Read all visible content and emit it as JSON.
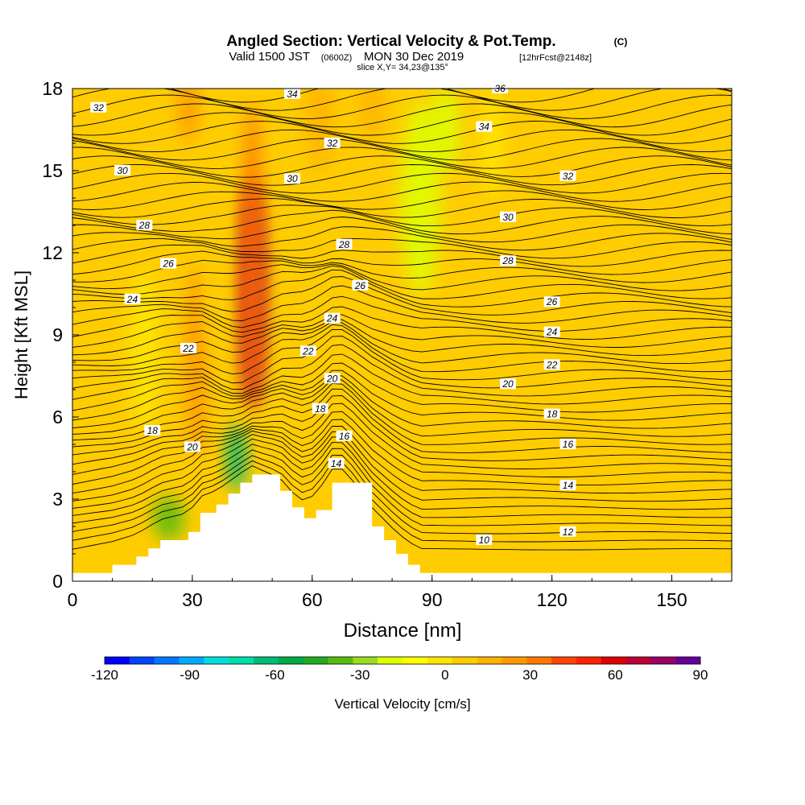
{
  "header": {
    "title": "Angled Section: Vertical Velocity & Pot.Temp.",
    "copyright": "(C)",
    "valid_prefix": "Valid 1500 JST",
    "valid_utc": "(0600Z)",
    "valid_date": "MON 30 Dec 2019",
    "forecast_info": "[12hrFcst@2148z]",
    "slice": "slice X,Y= 34,23@135°"
  },
  "chart_data": {
    "type": "heatmap",
    "title": "Angled Section: Vertical Velocity & Pot.Temp.",
    "xlabel": "Distance [nm]",
    "ylabel": "Height [Kft MSL]",
    "xlim": [
      0,
      165
    ],
    "ylim": [
      0,
      18
    ],
    "x_ticks": [
      0,
      30,
      60,
      90,
      120,
      150
    ],
    "y_ticks": [
      0,
      3,
      6,
      9,
      12,
      15,
      18
    ],
    "colorbar": {
      "label": "Vertical Velocity [cm/s]",
      "min": -120,
      "max": 90,
      "step": 10,
      "ticks": [
        -120,
        -90,
        -60,
        -30,
        0,
        30,
        60,
        90
      ],
      "colors": [
        "#0000ff",
        "#0044ff",
        "#0077ff",
        "#00aaff",
        "#00dddd",
        "#00ddaa",
        "#00bb77",
        "#00aa44",
        "#22aa22",
        "#55bb11",
        "#99dd22",
        "#ddff00",
        "#ffff00",
        "#ffe600",
        "#ffcc00",
        "#ffb300",
        "#ff9900",
        "#ff7700",
        "#ff4400",
        "#ff2200",
        "#dd0000",
        "#bb0033",
        "#990066",
        "#660099"
      ]
    },
    "terrain_kft": {
      "x": [
        0,
        10,
        16,
        19,
        22,
        29,
        32,
        36,
        39,
        42,
        45,
        52,
        55,
        58,
        61,
        65,
        68,
        75,
        78,
        81,
        84,
        87,
        90,
        165
      ],
      "y": [
        0.3,
        0.6,
        0.9,
        1.2,
        1.5,
        1.8,
        2.5,
        2.8,
        3.2,
        3.6,
        3.9,
        3.3,
        2.7,
        2.3,
        2.6,
        3.6,
        3.6,
        2.0,
        1.5,
        1.0,
        0.6,
        0.3,
        0.3,
        0.3
      ]
    },
    "velocity_features": [
      {
        "x": 45,
        "y": 10.5,
        "rx": 3.5,
        "ry": 4.2,
        "value": 90
      },
      {
        "x": 45,
        "y": 12.0,
        "rx": 2.5,
        "ry": 5.5,
        "value": 55
      },
      {
        "x": 31,
        "y": 8.0,
        "rx": 3.0,
        "ry": 3.5,
        "value": 45
      },
      {
        "x": 62,
        "y": 17.0,
        "rx": 3.5,
        "ry": 2.0,
        "value": 35
      },
      {
        "x": 29,
        "y": 17.5,
        "rx": 2.5,
        "ry": 1.5,
        "value": 40
      },
      {
        "x": 41,
        "y": 4.5,
        "rx": 2.5,
        "ry": 1.2,
        "value": -60
      },
      {
        "x": 24,
        "y": 2.3,
        "rx": 4.0,
        "ry": 0.8,
        "value": -25
      },
      {
        "x": 87,
        "y": 14.0,
        "rx": 5.0,
        "ry": 3.5,
        "value": -8
      },
      {
        "x": 93,
        "y": 16.5,
        "rx": 4.0,
        "ry": 1.5,
        "value": -5
      },
      {
        "x": 105,
        "y": 16.0,
        "rx": 3.0,
        "ry": 2.0,
        "value": 15
      },
      {
        "x": 145,
        "y": 16.5,
        "rx": 8.0,
        "ry": 2.0,
        "value": 22
      },
      {
        "x": 8,
        "y": 5.0,
        "rx": 5.0,
        "ry": 2.5,
        "value": 22
      },
      {
        "x": 18,
        "y": 8.5,
        "rx": 4.0,
        "ry": 3.0,
        "value": 15
      },
      {
        "x": 36,
        "y": 11.0,
        "rx": 3.0,
        "ry": 3.0,
        "value": 25
      },
      {
        "x": 75,
        "y": 17.5,
        "rx": 3.0,
        "ry": 1.5,
        "value": 32
      }
    ],
    "theta_label_points": [
      {
        "text": "32",
        "x": 6.5,
        "y": 17.3
      },
      {
        "text": "34",
        "x": 55,
        "y": 17.8
      },
      {
        "text": "36",
        "x": 107,
        "y": 18.0
      },
      {
        "text": "30",
        "x": 12.5,
        "y": 15.0
      },
      {
        "text": "32",
        "x": 65,
        "y": 16.0
      },
      {
        "text": "34",
        "x": 103,
        "y": 16.6
      },
      {
        "text": "30",
        "x": 55,
        "y": 14.7
      },
      {
        "text": "32",
        "x": 124,
        "y": 14.8
      },
      {
        "text": "28",
        "x": 18,
        "y": 13.0
      },
      {
        "text": "30",
        "x": 109,
        "y": 13.3
      },
      {
        "text": "28",
        "x": 68,
        "y": 12.3
      },
      {
        "text": "26",
        "x": 24,
        "y": 11.6
      },
      {
        "text": "28",
        "x": 109,
        "y": 11.7
      },
      {
        "text": "26",
        "x": 72,
        "y": 10.8
      },
      {
        "text": "24",
        "x": 15,
        "y": 10.3
      },
      {
        "text": "26",
        "x": 120,
        "y": 10.2
      },
      {
        "text": "24",
        "x": 65,
        "y": 9.6
      },
      {
        "text": "24",
        "x": 120,
        "y": 9.1
      },
      {
        "text": "22",
        "x": 29,
        "y": 8.5
      },
      {
        "text": "22",
        "x": 59,
        "y": 8.4
      },
      {
        "text": "22",
        "x": 120,
        "y": 7.9
      },
      {
        "text": "20",
        "x": 65,
        "y": 7.4
      },
      {
        "text": "20",
        "x": 109,
        "y": 7.2
      },
      {
        "text": "18",
        "x": 62,
        "y": 6.3
      },
      {
        "text": "18",
        "x": 120,
        "y": 6.1
      },
      {
        "text": "18",
        "x": 20,
        "y": 5.5
      },
      {
        "text": "20",
        "x": 30,
        "y": 4.9
      },
      {
        "text": "16",
        "x": 68,
        "y": 5.3
      },
      {
        "text": "16",
        "x": 124,
        "y": 5.0
      },
      {
        "text": "14",
        "x": 66,
        "y": 4.3
      },
      {
        "text": "14",
        "x": 124,
        "y": 3.5
      },
      {
        "text": "12",
        "x": 124,
        "y": 1.8
      },
      {
        "text": "10",
        "x": 103,
        "y": 1.5
      }
    ]
  }
}
